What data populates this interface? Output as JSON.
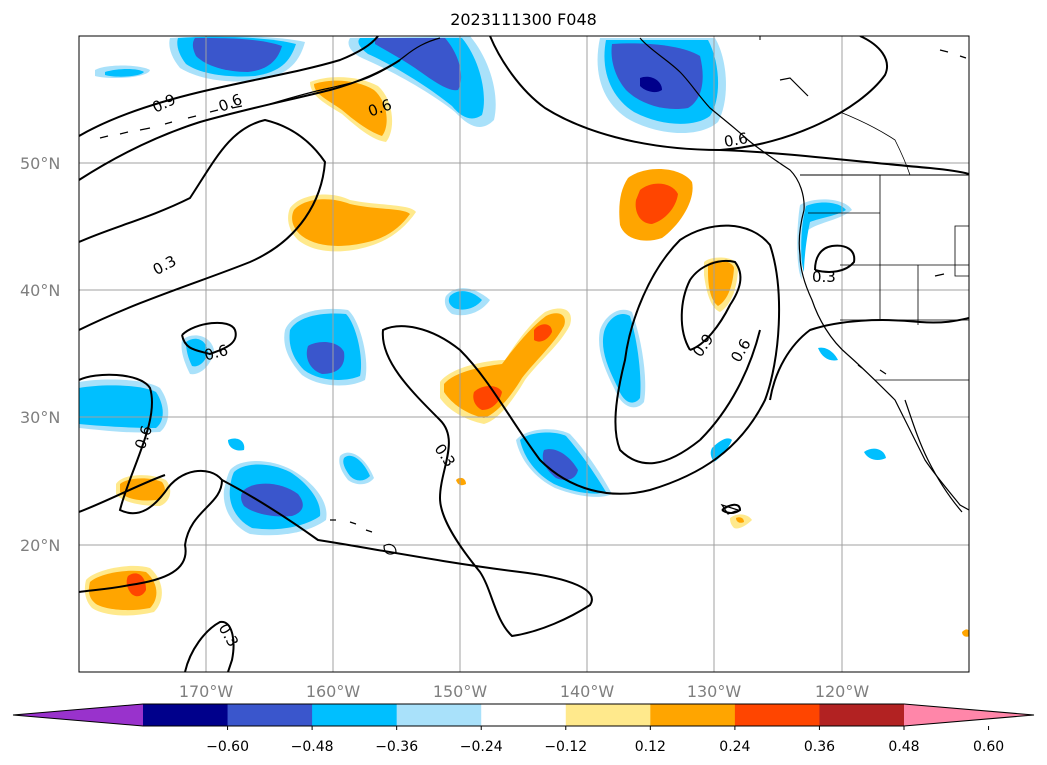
{
  "title": "2023111300 F048",
  "map": {
    "projection": "plate-carree",
    "lon_range": [
      -180,
      -110
    ],
    "lat_range": [
      10,
      60
    ],
    "gridlines": true,
    "lat_ticks": [
      "50°N",
      "40°N",
      "30°N",
      "20°N"
    ],
    "lon_ticks": [
      "170°W",
      "160°W",
      "150°W",
      "140°W",
      "130°W",
      "120°W"
    ],
    "contour_labels": [
      "0.9",
      "0.6",
      "0.6",
      "0.3",
      "0.6",
      "0.6",
      "0.3",
      "0.3",
      "0.9",
      "0.6",
      "0.6",
      "0.3"
    ]
  },
  "colorbar": {
    "ticks": [
      "−0.60",
      "−0.48",
      "−0.36",
      "−0.24",
      "−0.12",
      "0.12",
      "0.24",
      "0.36",
      "0.48",
      "0.60"
    ],
    "colors": [
      "#9932cc",
      "#00008b",
      "#3a56cc",
      "#00bfff",
      "#a9e1fa",
      "#ffffff",
      "#ffe98c",
      "#ffa500",
      "#ff4500",
      "#b22222",
      "#ff86a9"
    ]
  },
  "colors": {
    "blue_dark": "#3a56cc",
    "blue": "#00bfff",
    "blue_light": "#a9e1fa",
    "navy": "#00008b",
    "yellow_light": "#ffe98c",
    "orange": "#ffa500",
    "orange_red": "#ff4500",
    "contour": "#000000",
    "grid": "#a0a0a0"
  }
}
